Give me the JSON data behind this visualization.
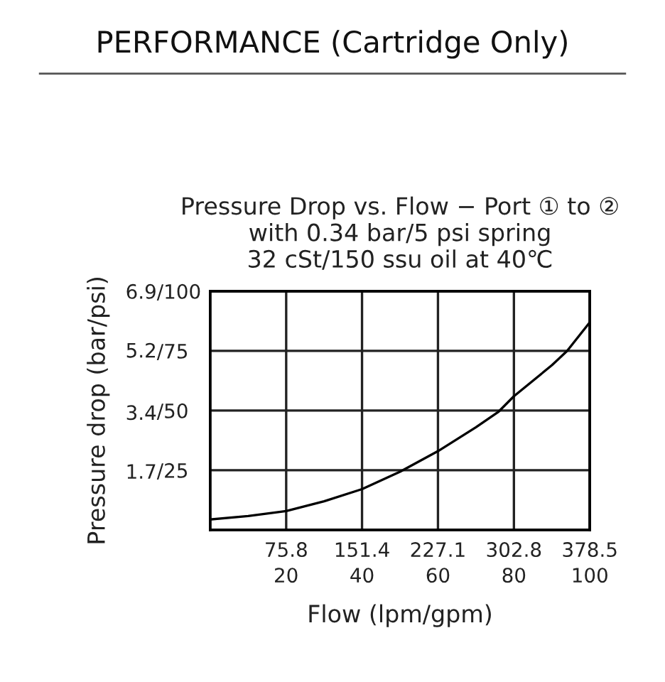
{
  "chart_data": {
    "type": "line",
    "title": "Pressure Drop vs. Flow − Port ① to ②\nwith 0.34 bar/5 psi spring\n32 cSt/150 ssu oil at 40℃",
    "annotations": [
      "PERFORMANCE (Cartridge Only)"
    ],
    "xlabel": "Flow (lpm/gpm)",
    "ylabel": "Pressure drop (bar/psi)",
    "series": [
      {
        "color": "#000000",
        "axis": "y2",
        "x": [
          0,
          37.9,
          75.8,
          113.6,
          151.4,
          189.3,
          227.1,
          265,
          287.7,
          302.8,
          340.7,
          355.8,
          378.5
        ],
        "values": [
          4.4,
          5.8,
          7.9,
          12,
          17.1,
          24.4,
          33,
          43,
          49.6,
          56,
          69,
          75,
          87
        ]
      }
    ],
    "xlim": [
      0,
      378.5
    ],
    "xticks": [
      75.8,
      151.4,
      227.1,
      302.8,
      378.5
    ],
    "x2lim": [
      0,
      100
    ],
    "x2ticks": [
      20,
      40,
      60,
      80,
      100
    ],
    "ylim": [
      0,
      6.9
    ],
    "yticks": [
      1.7,
      3.4,
      5.2,
      6.9
    ],
    "y2lim": [
      0,
      100
    ],
    "y2ticks": [
      {
        "value": 25,
        "label": "/25"
      },
      {
        "value": 50,
        "label": "/50"
      },
      {
        "value": 75,
        "label": "/75"
      },
      {
        "value": 100,
        "label": "/100"
      }
    ],
    "grid": true,
    "marker": "none",
    "line_style": "solid"
  }
}
